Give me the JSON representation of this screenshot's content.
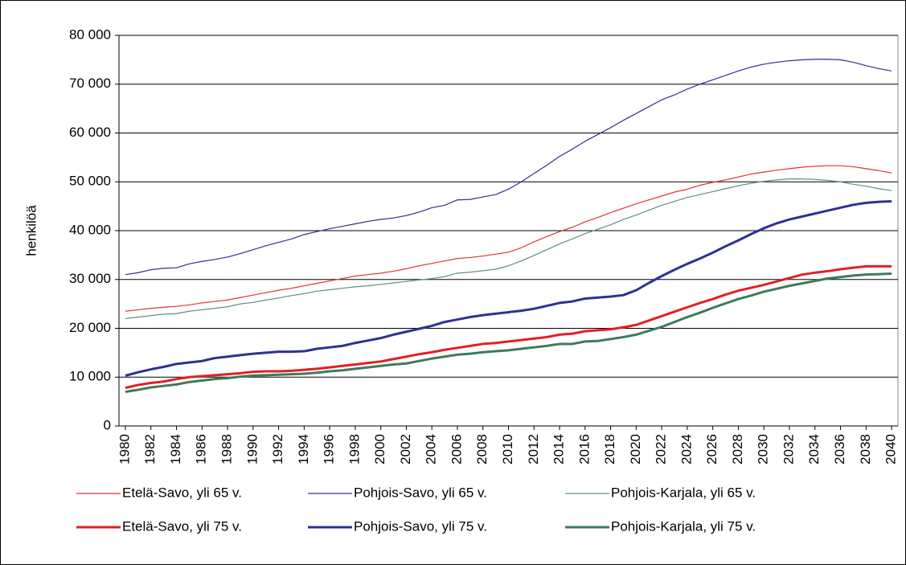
{
  "chart_data": {
    "type": "line",
    "y_label": "henkilöä",
    "x": [
      1980,
      1981,
      1982,
      1983,
      1984,
      1985,
      1986,
      1987,
      1988,
      1989,
      1990,
      1991,
      1992,
      1993,
      1994,
      1995,
      1996,
      1997,
      1998,
      1999,
      2000,
      2001,
      2002,
      2003,
      2004,
      2005,
      2006,
      2007,
      2008,
      2009,
      2010,
      2011,
      2012,
      2013,
      2014,
      2015,
      2016,
      2017,
      2018,
      2019,
      2020,
      2021,
      2022,
      2023,
      2024,
      2025,
      2026,
      2027,
      2028,
      2029,
      2030,
      2031,
      2032,
      2033,
      2034,
      2035,
      2036,
      2037,
      2038,
      2039,
      2040
    ],
    "xlim": [
      1979.5,
      2040.5
    ],
    "xticks": [
      1980,
      1982,
      1984,
      1986,
      1988,
      1990,
      1992,
      1994,
      1996,
      1998,
      2000,
      2002,
      2004,
      2006,
      2008,
      2010,
      2012,
      2014,
      2016,
      2018,
      2020,
      2022,
      2024,
      2026,
      2028,
      2030,
      2032,
      2034,
      2036,
      2038,
      2040
    ],
    "ylim": [
      0,
      80000
    ],
    "yticks": [
      0,
      {
        "value": 10000,
        "label": "10 000"
      },
      {
        "value": 20000,
        "label": "20 000"
      },
      {
        "value": 30000,
        "label": "30 000"
      },
      {
        "value": 40000,
        "label": "40 000"
      },
      {
        "value": 50000,
        "label": "50 000"
      },
      {
        "value": 60000,
        "label": "60 000"
      },
      {
        "value": 70000,
        "label": "70 000"
      },
      {
        "value": 80000,
        "label": "80 000"
      }
    ],
    "grid": true,
    "legend": "bottom",
    "series": [
      {
        "name": "Etelä-Savo, yli 65 v.",
        "color": "#e8322f",
        "line_width": 1.2,
        "values": [
          23500,
          23800,
          24100,
          24300,
          24500,
          24800,
          25200,
          25500,
          25800,
          26300,
          26800,
          27300,
          27800,
          28200,
          28700,
          29200,
          29700,
          30200,
          30700,
          31000,
          31300,
          31700,
          32200,
          32800,
          33300,
          33800,
          34300,
          34500,
          34800,
          35200,
          35600,
          36500,
          37700,
          38800,
          39800,
          40700,
          41800,
          42700,
          43700,
          44600,
          45500,
          46300,
          47100,
          47900,
          48500,
          49300,
          49900,
          50400,
          51000,
          51600,
          52000,
          52400,
          52700,
          53000,
          53200,
          53300,
          53300,
          53100,
          52700,
          52300,
          51800
        ]
      },
      {
        "name": "Pohjois-Savo, yli 65 v.",
        "color": "#2e3192",
        "line_width": 1.2,
        "values": [
          31000,
          31400,
          32000,
          32300,
          32400,
          33200,
          33700,
          34100,
          34600,
          35300,
          36100,
          36900,
          37600,
          38300,
          39200,
          39800,
          40400,
          40900,
          41400,
          41900,
          42300,
          42600,
          43100,
          43800,
          44700,
          45200,
          46300,
          46400,
          46900,
          47400,
          48500,
          50000,
          51700,
          53400,
          55200,
          56700,
          58300,
          59700,
          61100,
          62600,
          64000,
          65400,
          66800,
          67800,
          69000,
          70000,
          70900,
          71800,
          72700,
          73500,
          74100,
          74500,
          74800,
          75000,
          75100,
          75100,
          75000,
          74500,
          73800,
          73200,
          72700
        ]
      },
      {
        "name": "Pohjois-Karjala, yli 65 v.",
        "color": "#5f8f84",
        "line_width": 1.2,
        "values": [
          22000,
          22300,
          22600,
          22900,
          23000,
          23500,
          23800,
          24100,
          24400,
          25000,
          25300,
          25800,
          26200,
          26700,
          27100,
          27600,
          27900,
          28200,
          28500,
          28700,
          29000,
          29300,
          29600,
          29900,
          30200,
          30600,
          31300,
          31500,
          31800,
          32100,
          32800,
          33800,
          34900,
          36100,
          37300,
          38300,
          39400,
          40300,
          41200,
          42300,
          43200,
          44200,
          45200,
          46000,
          46800,
          47400,
          48000,
          48600,
          49200,
          49700,
          50100,
          50400,
          50600,
          50600,
          50500,
          50300,
          50000,
          49500,
          49100,
          48600,
          48200
        ]
      },
      {
        "name": "Etelä-Savo, yli 75 v.",
        "color": "#e41e26",
        "line_width": 3,
        "values": [
          7800,
          8400,
          8800,
          9100,
          9600,
          10000,
          10200,
          10400,
          10600,
          10800,
          11100,
          11200,
          11200,
          11300,
          11500,
          11700,
          12000,
          12300,
          12600,
          12900,
          13200,
          13700,
          14200,
          14700,
          15100,
          15600,
          16000,
          16400,
          16800,
          17000,
          17300,
          17600,
          17900,
          18200,
          18700,
          18900,
          19400,
          19600,
          19800,
          20200,
          20700,
          21600,
          22500,
          23400,
          24300,
          25200,
          26000,
          26900,
          27700,
          28300,
          28900,
          29600,
          30300,
          31000,
          31400,
          31700,
          32100,
          32400,
          32700,
          32700,
          32700
        ]
      },
      {
        "name": "Pohjois-Savo, yli 75 v.",
        "color": "#2e3192",
        "line_width": 3,
        "values": [
          10300,
          11000,
          11600,
          12100,
          12700,
          13000,
          13300,
          13900,
          14200,
          14500,
          14800,
          15000,
          15200,
          15200,
          15300,
          15800,
          16100,
          16400,
          17000,
          17500,
          18000,
          18700,
          19300,
          19900,
          20500,
          21300,
          21800,
          22300,
          22700,
          23000,
          23300,
          23600,
          24000,
          24600,
          25200,
          25500,
          26100,
          26300,
          26500,
          26800,
          27800,
          29300,
          30700,
          32000,
          33200,
          34300,
          35500,
          36800,
          38000,
          39300,
          40500,
          41500,
          42300,
          42900,
          43500,
          44100,
          44700,
          45300,
          45700,
          45900,
          46000
        ]
      },
      {
        "name": "Pohjois-Karjala, yli 75 v.",
        "color": "#3d7a5a",
        "line_width": 3,
        "values": [
          7000,
          7400,
          7900,
          8200,
          8500,
          9000,
          9300,
          9600,
          9800,
          10100,
          10300,
          10400,
          10500,
          10600,
          10700,
          10900,
          11200,
          11400,
          11700,
          12000,
          12300,
          12600,
          12800,
          13300,
          13800,
          14200,
          14600,
          14800,
          15100,
          15300,
          15500,
          15800,
          16100,
          16400,
          16800,
          16800,
          17300,
          17400,
          17800,
          18200,
          18700,
          19500,
          20300,
          21300,
          22300,
          23200,
          24200,
          25100,
          26000,
          26700,
          27500,
          28100,
          28700,
          29200,
          29700,
          30200,
          30500,
          30800,
          31000,
          31100,
          31200
        ]
      }
    ]
  }
}
